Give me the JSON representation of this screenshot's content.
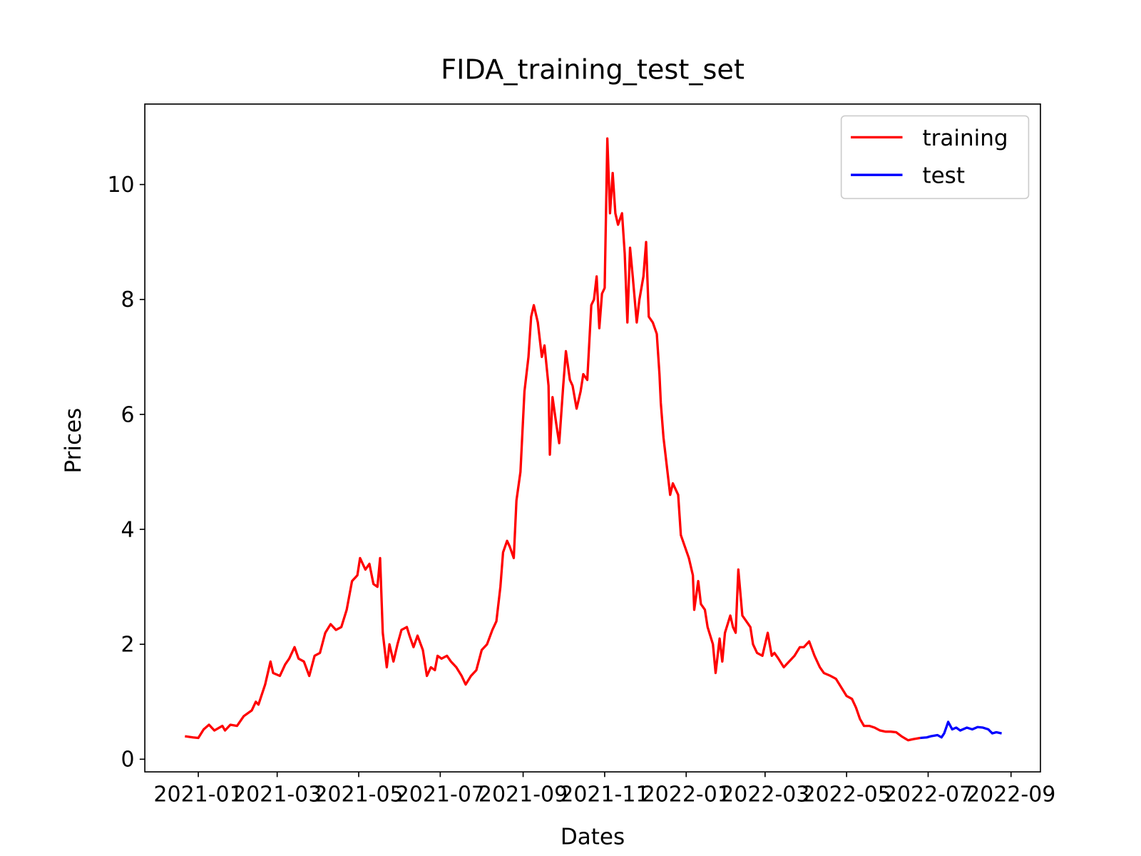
{
  "chart_data": {
    "type": "line",
    "title": "FIDA_training_test_set",
    "x_label": "Dates",
    "y_label": "Prices",
    "xlim": [
      18588,
      19258
    ],
    "ylim": [
      -0.22,
      11.4
    ],
    "xticks": [
      {
        "value": 18628,
        "label": "2021-01"
      },
      {
        "value": 18687,
        "label": "2021-03"
      },
      {
        "value": 18748,
        "label": "2021-05"
      },
      {
        "value": 18809,
        "label": "2021-07"
      },
      {
        "value": 18871,
        "label": "2021-09"
      },
      {
        "value": 18932,
        "label": "2021-11"
      },
      {
        "value": 18993,
        "label": "2022-01"
      },
      {
        "value": 19052,
        "label": "2022-03"
      },
      {
        "value": 19113,
        "label": "2022-05"
      },
      {
        "value": 19174,
        "label": "2022-07"
      },
      {
        "value": 19236,
        "label": "2022-09"
      }
    ],
    "yticks": [
      0,
      2,
      4,
      6,
      8,
      10
    ],
    "legend": "upper right",
    "series": [
      {
        "name": "training",
        "color": "#ff0000",
        "x": [
          18618,
          18624,
          18628,
          18632,
          18636,
          18640,
          18646,
          18648,
          18652,
          18657,
          18662,
          18668,
          18671,
          18673,
          18678,
          18682,
          18684,
          18689,
          18693,
          18696,
          18700,
          18703,
          18707,
          18711,
          18715,
          18719,
          18723,
          18727,
          18731,
          18735,
          18739,
          18743,
          18747,
          18749,
          18753,
          18756,
          18759,
          18762,
          18764,
          18766,
          18769,
          18771,
          18774,
          18777,
          18780,
          18784,
          18786,
          18789,
          18792,
          18796,
          18799,
          18802,
          18805,
          18807,
          18810,
          18814,
          18817,
          18821,
          18825,
          18828,
          18832,
          18836,
          18840,
          18844,
          18848,
          18851,
          18854,
          18856,
          18859,
          18861,
          18864,
          18866,
          18869,
          18872,
          18875,
          18877,
          18879,
          18882,
          18885,
          18887,
          18890,
          18891,
          18893,
          18896,
          18898,
          18901,
          18903,
          18906,
          18908,
          18911,
          18914,
          18916,
          18919,
          18922,
          18924,
          18926,
          18928,
          18930,
          18932,
          18934,
          18936,
          18938,
          18940,
          18942,
          18945,
          18947,
          18949,
          18951,
          18953,
          18956,
          18958,
          18961,
          18963,
          18965,
          18968,
          18971,
          18973,
          18974,
          18976,
          18978,
          18981,
          18983,
          18987,
          18989,
          18992,
          18995,
          18998,
          18999,
          19002,
          19004,
          19007,
          19009,
          19013,
          19015,
          19018,
          19020,
          19022,
          19026,
          19028,
          19030,
          19032,
          19035,
          19038,
          19041,
          19043,
          19046,
          19050,
          19054,
          19057,
          19059,
          19062,
          19066,
          19070,
          19074,
          19078,
          19081,
          19085,
          19089,
          19093,
          19096,
          19101,
          19105,
          19109,
          19113,
          19117,
          19120,
          19123,
          19126,
          19130,
          19134,
          19138,
          19142,
          19146,
          19150,
          19154,
          19159,
          19163,
          19168
        ],
        "values": [
          0.4,
          0.38,
          0.37,
          0.52,
          0.6,
          0.5,
          0.58,
          0.5,
          0.6,
          0.58,
          0.75,
          0.85,
          1.0,
          0.95,
          1.3,
          1.7,
          1.5,
          1.45,
          1.65,
          1.75,
          1.95,
          1.75,
          1.7,
          1.45,
          1.8,
          1.85,
          2.2,
          2.35,
          2.25,
          2.3,
          2.6,
          3.1,
          3.2,
          3.5,
          3.3,
          3.4,
          3.05,
          3.0,
          3.5,
          2.2,
          1.6,
          2.0,
          1.7,
          2.0,
          2.25,
          2.3,
          2.15,
          1.95,
          2.15,
          1.9,
          1.45,
          1.6,
          1.55,
          1.8,
          1.75,
          1.8,
          1.7,
          1.6,
          1.45,
          1.3,
          1.45,
          1.55,
          1.9,
          2.0,
          2.25,
          2.4,
          3.0,
          3.6,
          3.8,
          3.7,
          3.5,
          4.5,
          5.0,
          6.4,
          7.0,
          7.7,
          7.9,
          7.6,
          7.0,
          7.2,
          6.5,
          5.3,
          6.3,
          5.8,
          5.5,
          6.5,
          7.1,
          6.6,
          6.5,
          6.1,
          6.4,
          6.7,
          6.6,
          7.9,
          8.0,
          8.4,
          7.5,
          8.1,
          8.2,
          10.8,
          9.5,
          10.2,
          9.5,
          9.3,
          9.5,
          8.8,
          7.6,
          8.9,
          8.4,
          7.6,
          8.0,
          8.4,
          9.0,
          7.7,
          7.6,
          7.4,
          6.7,
          6.2,
          5.6,
          5.2,
          4.6,
          4.8,
          4.6,
          3.9,
          3.7,
          3.5,
          3.2,
          2.6,
          3.1,
          2.7,
          2.6,
          2.3,
          2.0,
          1.5,
          2.1,
          1.7,
          2.2,
          2.5,
          2.3,
          2.2,
          3.3,
          2.5,
          2.4,
          2.3,
          2.0,
          1.85,
          1.8,
          2.2,
          1.8,
          1.85,
          1.75,
          1.6,
          1.7,
          1.8,
          1.95,
          1.95,
          2.05,
          1.8,
          1.6,
          1.5,
          1.45,
          1.4,
          1.25,
          1.1,
          1.05,
          0.9,
          0.7,
          0.58,
          0.58,
          0.55,
          0.5,
          0.48,
          0.48,
          0.47,
          0.4,
          0.33,
          0.35,
          0.37
        ]
      },
      {
        "name": "test",
        "color": "#0000ff",
        "x": [
          19168,
          19173,
          19176,
          19181,
          19184,
          19186,
          19189,
          19192,
          19195,
          19198,
          19203,
          19207,
          19211,
          19215,
          19219,
          19222,
          19225,
          19229
        ],
        "values": [
          0.37,
          0.38,
          0.4,
          0.42,
          0.38,
          0.45,
          0.65,
          0.52,
          0.55,
          0.5,
          0.55,
          0.52,
          0.56,
          0.55,
          0.52,
          0.45,
          0.47,
          0.45
        ]
      }
    ]
  }
}
